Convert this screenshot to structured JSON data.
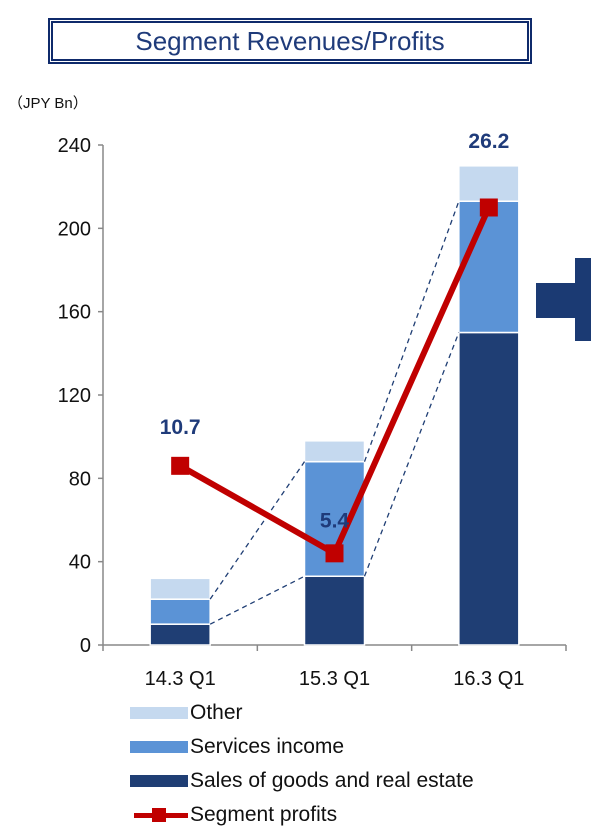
{
  "title": "Segment Revenues/Profits",
  "unit_label": "（JPY Bn）",
  "colors": {
    "other": "#c5d9ef",
    "services": "#5b93d6",
    "goods": "#1f3e74",
    "profit": "#c00000",
    "profit_label": "#1f3b7a",
    "connector": "#1f3e74",
    "arrow": "#1b3a73"
  },
  "chart_data": {
    "type": "bar",
    "stacked": true,
    "categories": [
      "14.3 Q1",
      "15.3 Q1",
      "16.3 Q1"
    ],
    "ylim": [
      0,
      240
    ],
    "yticks": [
      0,
      40,
      80,
      120,
      160,
      200,
      240
    ],
    "series": [
      {
        "name": "Sales of goods and real estate",
        "key": "goods",
        "values": [
          10,
          33,
          150
        ]
      },
      {
        "name": "Services income",
        "key": "services",
        "values": [
          12,
          55,
          63
        ]
      },
      {
        "name": "Other",
        "key": "other",
        "values": [
          10,
          10,
          17
        ]
      }
    ],
    "profit_series": {
      "name": "Segment profits",
      "labels": [
        "10.7",
        "5.4",
        "26.2"
      ],
      "positions": [
        86,
        44,
        210
      ]
    }
  },
  "legend": [
    {
      "key": "other",
      "label": "Other"
    },
    {
      "key": "services",
      "label": "Services income"
    },
    {
      "key": "goods",
      "label": "Sales of goods and real estate"
    },
    {
      "key": "profit",
      "label": "Segment profits"
    }
  ]
}
